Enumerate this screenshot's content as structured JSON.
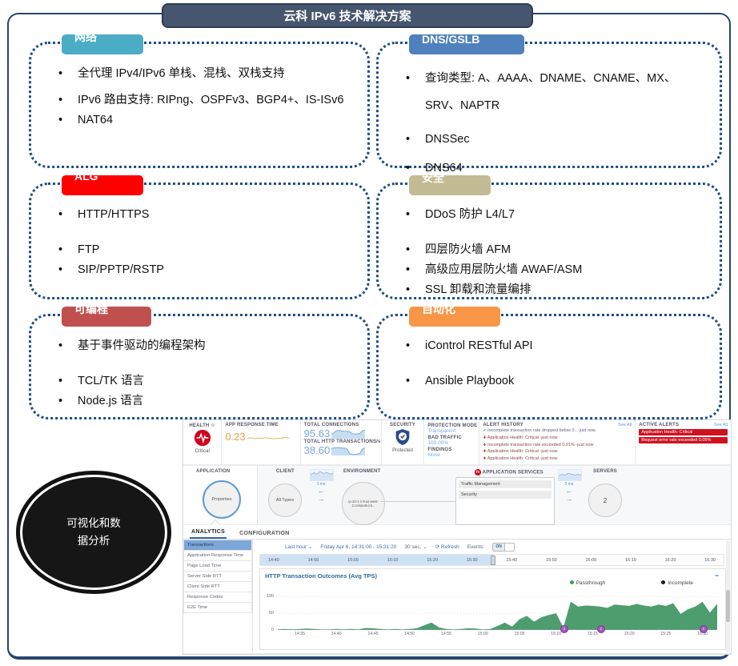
{
  "title": "云科 IPv6 技术解决方案",
  "visual_label": "可视化和数据分析",
  "feature_boxes": [
    {
      "tab": "网络",
      "items": [
        "全代理 IPv4/IPv6 单栈、混栈、双栈支持",
        "IPv6 路由支持: RIPng、OSPFv3、BGP4+、IS-ISv6",
        "NAT64"
      ]
    },
    {
      "tab": "DNS/GSLB",
      "items": [
        "查询类型: A、AAAA、DNAME、CNAME、MX、SRV、NAPTR",
        "DNSSec",
        "DNS64"
      ]
    },
    {
      "tab": "ALG",
      "items": [
        "HTTP/HTTPS",
        "FTP",
        "SIP/PPTP/RSTP"
      ]
    },
    {
      "tab": "安全",
      "items": [
        "DDoS 防护 L4/L7",
        "四层防火墙 AFM",
        "高级应用层防火墙 AWAF/ASM",
        "SSL 卸载和流量编排"
      ]
    },
    {
      "tab": "可编程",
      "items": [
        "基于事件驱动的编程架构",
        "TCL/TK 语言",
        "Node.js 语言"
      ]
    },
    {
      "tab": "自动化",
      "items": [
        "iControl RESTful API",
        "Ansible Playbook"
      ]
    }
  ],
  "dashboard": {
    "health": {
      "label": "HEALTH",
      "status": "Critical"
    },
    "metrics": {
      "app_response_time": {
        "label": "APP RESPONSE TIME",
        "value": "0.23"
      },
      "total_connections": {
        "label": "TOTAL CONNECTIONS",
        "value": "95.63"
      },
      "http_transactions": {
        "label": "TOTAL HTTP TRANSACTIONS/s",
        "value": "38.60"
      }
    },
    "security": {
      "label": "SECURITY",
      "status": "Protected"
    },
    "protection": {
      "mode_label": "PROTECTION MODE",
      "mode": "Transparent",
      "bad_traffic_label": "BAD TRAFFIC",
      "bad_traffic": "100.00%",
      "findings_label": "FINDINGS",
      "findings": "None"
    },
    "alert_history": {
      "label": "ALERT HISTORY",
      "see_all": "See All",
      "items": [
        {
          "icon": "check",
          "text": "Incomplete transaction rate dropped below 0... just now"
        },
        {
          "icon": "alert",
          "text": "Application Health: Critical -just now"
        },
        {
          "icon": "alert",
          "text": "Incomplete transaction rate exceeded 0.01% -just now"
        },
        {
          "icon": "alert",
          "text": "Application Health: Critical -just now"
        },
        {
          "icon": "alert",
          "text": "Application Health: Critical -just now"
        }
      ]
    },
    "active_alerts": {
      "label": "ACTIVE ALERTS",
      "see_all": "See All",
      "items": [
        "Application Health: Critical",
        "Request error rate exceeded 0.05%"
      ]
    },
    "topology": {
      "app_label": "APPLICATION",
      "client_label": "CLIENT",
      "environment_label": "ENVIRONMENT",
      "services_label": "APPLICATION SERVICES",
      "servers_label": "SERVERS",
      "application_node": "Properties",
      "client_node": "All Types",
      "client_latency": "1 ms",
      "environment_node": "ip-10-1-1-9.us-west-2.compute.int...",
      "services": [
        "Traffic Management",
        "Security"
      ],
      "server_latency": "2 ms",
      "servers_count": "2"
    },
    "tabs": {
      "analytics": "ANALYTICS",
      "configuration": "CONFIGURATION"
    },
    "sidebar": [
      "Transactions",
      "Application Response Time",
      "Page Load Time",
      "Server Side RTT",
      "Client Side RTT",
      "Response Codes",
      "E2E Time"
    ],
    "timebar": {
      "range": "Last hour",
      "date_range": "Friday Apr 6, 14:31:00 - 15:31:20",
      "interval": "30 sec.",
      "refresh": "Refresh",
      "events_label": "Events:",
      "events_state": "ON",
      "ticks": [
        "14:40",
        "14:50",
        "15:00",
        "15:10",
        "15:20",
        "15:30",
        "15:40",
        "15:50",
        "16:00",
        "16:10",
        "16:20",
        "16:30"
      ]
    }
  },
  "sparklines": {
    "app_response_time": [
      0.23,
      0.26,
      0.22,
      0.25,
      0.23,
      0.27,
      0.22,
      0.21,
      0.24,
      0.22,
      0.3,
      0.24
    ],
    "total_connections": [
      50,
      68,
      92,
      95,
      90,
      86,
      84,
      82,
      58,
      52,
      55,
      60,
      90,
      96
    ],
    "http_transactions": [
      37,
      39,
      41,
      40,
      39,
      38,
      36,
      10,
      6,
      5,
      7,
      10,
      34,
      39
    ],
    "client_thumb": [
      6,
      9,
      7,
      10,
      8,
      9,
      7,
      8
    ],
    "servers_thumb": [
      5,
      7,
      6,
      8,
      7,
      6,
      7,
      6
    ]
  },
  "chart_data": {
    "type": "area",
    "title": "HTTP Transaction Outcomes (Avg TPS)",
    "legend": [
      {
        "name": "Passthrough",
        "color": "#4e9d6e"
      },
      {
        "name": "Incomplete",
        "color": "#1a1a1a"
      }
    ],
    "ylim": [
      0,
      100
    ],
    "yticks": [
      0,
      50,
      100
    ],
    "x_start": "14:32",
    "x_end": "15:32",
    "x_labels": [
      "14:35",
      "14:40",
      "14:45",
      "14:50",
      "14:55",
      "15:00",
      "15:05",
      "15:10",
      "15:15",
      "15:20",
      "15:25",
      "15:30"
    ],
    "series": [
      {
        "name": "Passthrough",
        "values": [
          2,
          3,
          2,
          3,
          4,
          3,
          2,
          2,
          3,
          2,
          3,
          2,
          6,
          5,
          3,
          2,
          3,
          2,
          3,
          5,
          14,
          22,
          8,
          3,
          2,
          3,
          5,
          4,
          2,
          3,
          12,
          22,
          10,
          32,
          42,
          25,
          38,
          45,
          50,
          8,
          85,
          70,
          73,
          72,
          70,
          66,
          76,
          74,
          72,
          78,
          73,
          70,
          76,
          72,
          80,
          48,
          62,
          70,
          84,
          52,
          78
        ]
      },
      {
        "name": "Incomplete",
        "values": [
          0,
          0,
          0,
          0,
          0,
          0,
          0,
          0,
          0,
          0,
          0,
          0,
          0,
          0,
          0,
          0,
          0,
          0,
          0,
          0,
          0,
          0,
          0,
          0,
          0,
          0,
          0,
          0,
          0,
          0,
          0,
          0,
          0,
          0,
          0,
          0,
          0,
          0,
          0,
          0,
          0,
          0,
          0,
          0,
          0,
          0,
          0,
          0,
          0,
          0,
          0,
          0,
          0,
          0,
          0,
          0,
          0,
          0,
          0,
          0,
          0
        ]
      }
    ],
    "event_markers": [
      {
        "time": "15:11",
        "count": "2"
      },
      {
        "time": "15:16",
        "count": "2"
      },
      {
        "time": "15:30",
        "count": "3"
      }
    ]
  }
}
